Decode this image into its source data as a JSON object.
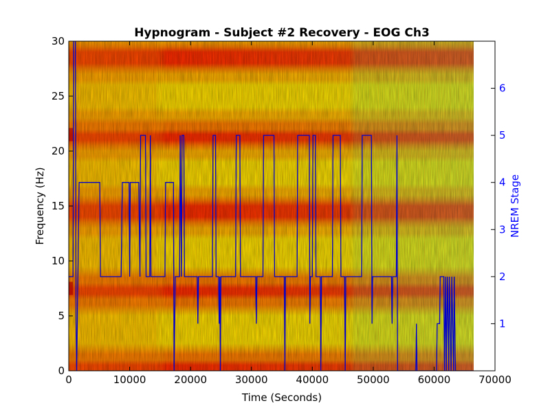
{
  "chart_data": {
    "type": "heatmap",
    "title": "Hypnogram - Subject #2 Recovery - EOG Ch3",
    "xlabel": "Time (Seconds)",
    "ylabel": "Frequency (Hz)",
    "y2label": "NREM Stage",
    "xlim": [
      0,
      70000
    ],
    "ylim": [
      0,
      30
    ],
    "y2lim": [
      0,
      7
    ],
    "data_xmax": 66500,
    "x_ticks": [
      0,
      10000,
      20000,
      30000,
      40000,
      50000,
      60000,
      70000
    ],
    "x_tick_labels": [
      "0",
      "10000",
      "20000",
      "30000",
      "40000",
      "50000",
      "60000",
      "70000"
    ],
    "y_ticks": [
      0,
      5,
      10,
      15,
      20,
      25,
      30
    ],
    "y_tick_labels": [
      "0",
      "5",
      "10",
      "15",
      "20",
      "25",
      "30"
    ],
    "y2_ticks": [
      1,
      2,
      3,
      4,
      5,
      6
    ],
    "y2_tick_labels": [
      "1",
      "2",
      "3",
      "4",
      "5",
      "6"
    ],
    "colormap": "jet",
    "spectrogram_bands_hz": [
      0.3,
      7.3,
      14.4,
      21.4,
      28.5
    ],
    "colors": {
      "hypnogram_line": "#0000cc",
      "right_axis": "#0000ff"
    },
    "hypnogram": {
      "name": "NREM Stage",
      "points": [
        [
          0,
          2
        ],
        [
          700,
          2
        ],
        [
          800,
          7
        ],
        [
          1100,
          7
        ],
        [
          1200,
          1
        ],
        [
          1300,
          0
        ],
        [
          1500,
          2
        ],
        [
          1600,
          3
        ],
        [
          1700,
          4
        ],
        [
          5100,
          4
        ],
        [
          5200,
          2
        ],
        [
          8600,
          2
        ],
        [
          8700,
          3
        ],
        [
          8800,
          4
        ],
        [
          9900,
          4
        ],
        [
          10000,
          2
        ],
        [
          10100,
          4
        ],
        [
          11500,
          4
        ],
        [
          11600,
          3
        ],
        [
          11700,
          2
        ],
        [
          11800,
          5
        ],
        [
          12600,
          5
        ],
        [
          12700,
          2
        ],
        [
          13300,
          2
        ],
        [
          13400,
          5
        ],
        [
          13500,
          2
        ],
        [
          15800,
          2
        ],
        [
          15900,
          4
        ],
        [
          17200,
          4
        ],
        [
          17300,
          0
        ],
        [
          17500,
          2
        ],
        [
          18200,
          2
        ],
        [
          18300,
          5
        ],
        [
          18500,
          2
        ],
        [
          18600,
          5
        ],
        [
          18900,
          5
        ],
        [
          19000,
          2
        ],
        [
          21100,
          2
        ],
        [
          21200,
          1
        ],
        [
          21300,
          2
        ],
        [
          23600,
          2
        ],
        [
          23700,
          5
        ],
        [
          24100,
          5
        ],
        [
          24200,
          2
        ],
        [
          24600,
          2
        ],
        [
          24700,
          1
        ],
        [
          24800,
          2
        ],
        [
          24900,
          0
        ],
        [
          25000,
          2
        ],
        [
          27400,
          2
        ],
        [
          27500,
          5
        ],
        [
          28100,
          5
        ],
        [
          28200,
          2
        ],
        [
          30700,
          2
        ],
        [
          30800,
          1
        ],
        [
          30900,
          2
        ],
        [
          31900,
          2
        ],
        [
          32000,
          5
        ],
        [
          33700,
          5
        ],
        [
          33800,
          2
        ],
        [
          35400,
          2
        ],
        [
          35500,
          0
        ],
        [
          35600,
          2
        ],
        [
          37500,
          2
        ],
        [
          37600,
          5
        ],
        [
          39500,
          5
        ],
        [
          39600,
          1
        ],
        [
          39700,
          2
        ],
        [
          40000,
          2
        ],
        [
          40100,
          5
        ],
        [
          40500,
          5
        ],
        [
          40600,
          2
        ],
        [
          41300,
          2
        ],
        [
          41400,
          0
        ],
        [
          41500,
          2
        ],
        [
          43300,
          2
        ],
        [
          43400,
          5
        ],
        [
          44600,
          5
        ],
        [
          44700,
          2
        ],
        [
          45300,
          2
        ],
        [
          45400,
          0
        ],
        [
          45500,
          2
        ],
        [
          48100,
          2
        ],
        [
          48200,
          5
        ],
        [
          49700,
          5
        ],
        [
          49800,
          1
        ],
        [
          49900,
          2
        ],
        [
          53000,
          2
        ],
        [
          53100,
          1
        ],
        [
          53200,
          2
        ],
        [
          53800,
          2
        ],
        [
          53900,
          5
        ],
        [
          54000,
          0
        ],
        [
          57000,
          0
        ],
        [
          57100,
          1
        ],
        [
          57200,
          0
        ],
        [
          60400,
          0
        ],
        [
          60500,
          1
        ],
        [
          60900,
          1
        ],
        [
          61000,
          2
        ],
        [
          61600,
          2
        ],
        [
          61700,
          0
        ],
        [
          61900,
          2
        ],
        [
          62000,
          0
        ],
        [
          62200,
          2
        ],
        [
          62400,
          0
        ],
        [
          62500,
          2
        ],
        [
          62800,
          0
        ],
        [
          62900,
          2
        ],
        [
          63200,
          0
        ],
        [
          63300,
          2
        ],
        [
          63500,
          0
        ],
        [
          66500,
          0
        ]
      ]
    }
  }
}
